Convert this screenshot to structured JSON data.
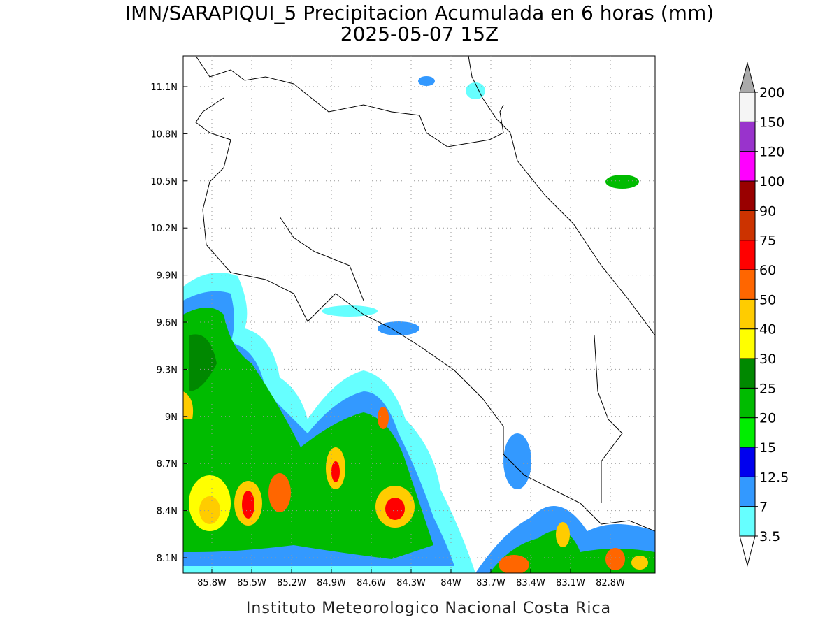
{
  "title": "IMN/SARAPIQUI_5 Precipitacion Acumulada en 6 horas (mm)",
  "subtitle": "2025-05-07 15Z",
  "lat_labels": [
    "11.1N",
    "10.8N",
    "10.5N",
    "10.2N",
    "9.9N",
    "9.6N",
    "9.3N",
    "9N",
    "8.7N",
    "8.4N",
    "8.1N"
  ],
  "lon_labels": [
    "85.8W",
    "85.5W",
    "85.2W",
    "84.9W",
    "84.6W",
    "84.3W",
    "84W",
    "83.7W",
    "83.4W",
    "83.1W",
    "82.8W"
  ],
  "colorbar": {
    "levels": [
      3.5,
      7,
      12.5,
      15,
      20,
      25,
      30,
      40,
      50,
      60,
      75,
      90,
      100,
      120,
      150,
      200
    ],
    "colors": [
      "#66ffff",
      "#3399ff",
      "#0000ee",
      "#00ee00",
      "#00bb00",
      "#008800",
      "#ffff00",
      "#ffcc00",
      "#ff6600",
      "#ff0000",
      "#cc3300",
      "#990000",
      "#ff00ff",
      "#9933cc",
      "#f5f5f5",
      "#aaaaaa"
    ]
  },
  "footer": "Instituto Meteorologico Nacional Costa Rica"
}
